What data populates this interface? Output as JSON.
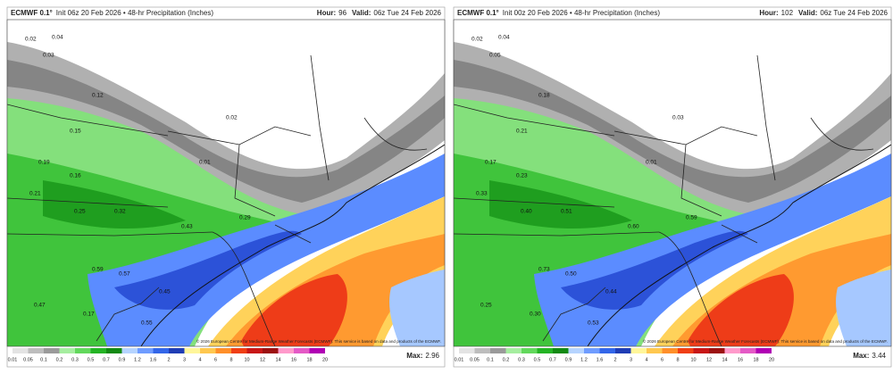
{
  "panels": [
    {
      "header": {
        "model": "ECMWF 0.1°",
        "init": "Init 06z 20 Feb 2026 • 48-hr Precipitation (Inches)",
        "hour_label": "Hour:",
        "hour": "96",
        "valid_label": "Valid:",
        "valid": "06z Tue 24 Feb 2026"
      },
      "labels": [
        "0.02",
        "0.04",
        "0.03",
        "0.12",
        "0.15",
        "0.19",
        "0.16",
        "0.21",
        "0.25",
        "0.32",
        "0.43",
        "0.29",
        "0.59",
        "0.57",
        "0.45",
        "0.47",
        "0.17",
        "0.02",
        "0.01",
        "0.55"
      ],
      "max_label": "Max:",
      "max": "2.96"
    },
    {
      "header": {
        "model": "ECMWF 0.1°",
        "init": "Init 00z 20 Feb 2026 • 48-hr Precipitation (Inches)",
        "hour_label": "Hour:",
        "hour": "102",
        "valid_label": "Valid:",
        "valid": "06z Tue 24 Feb 2026"
      },
      "labels": [
        "0.02",
        "0.04",
        "0.05",
        "0.18",
        "0.21",
        "0.17",
        "0.23",
        "0.33",
        "0.40",
        "0.51",
        "0.60",
        "0.59",
        "0.73",
        "0.50",
        "0.44",
        "0.25",
        "0.30",
        "0.03",
        "0.01",
        "0.53"
      ],
      "max_label": "Max:",
      "max": "3.44"
    }
  ],
  "legend": {
    "ticks": [
      "0.01",
      "0.05",
      "0.1",
      "0.2",
      "0.3",
      "0.5",
      "0.7",
      "0.9",
      "1.2",
      "1.6",
      "2",
      "3",
      "4",
      "6",
      "8",
      "10",
      "12",
      "14",
      "16",
      "18",
      "20"
    ],
    "colors": [
      "#e3e3e3",
      "#bdbdbd",
      "#9a9a9a",
      "#a6eea0",
      "#62d85c",
      "#24b424",
      "#138a13",
      "#b6d4ff",
      "#6f9cff",
      "#3366e8",
      "#1f3db5",
      "#fff69a",
      "#ffc84f",
      "#ff8f2a",
      "#f03f15",
      "#c81717",
      "#9c1111",
      "#ff9acb",
      "#e45ac6",
      "#b000b4"
    ]
  },
  "copyright": "© 2026 European Centre for Medium-Range Weather Forecasts (ECMWF). This service is based on data and products of the ECMWF."
}
